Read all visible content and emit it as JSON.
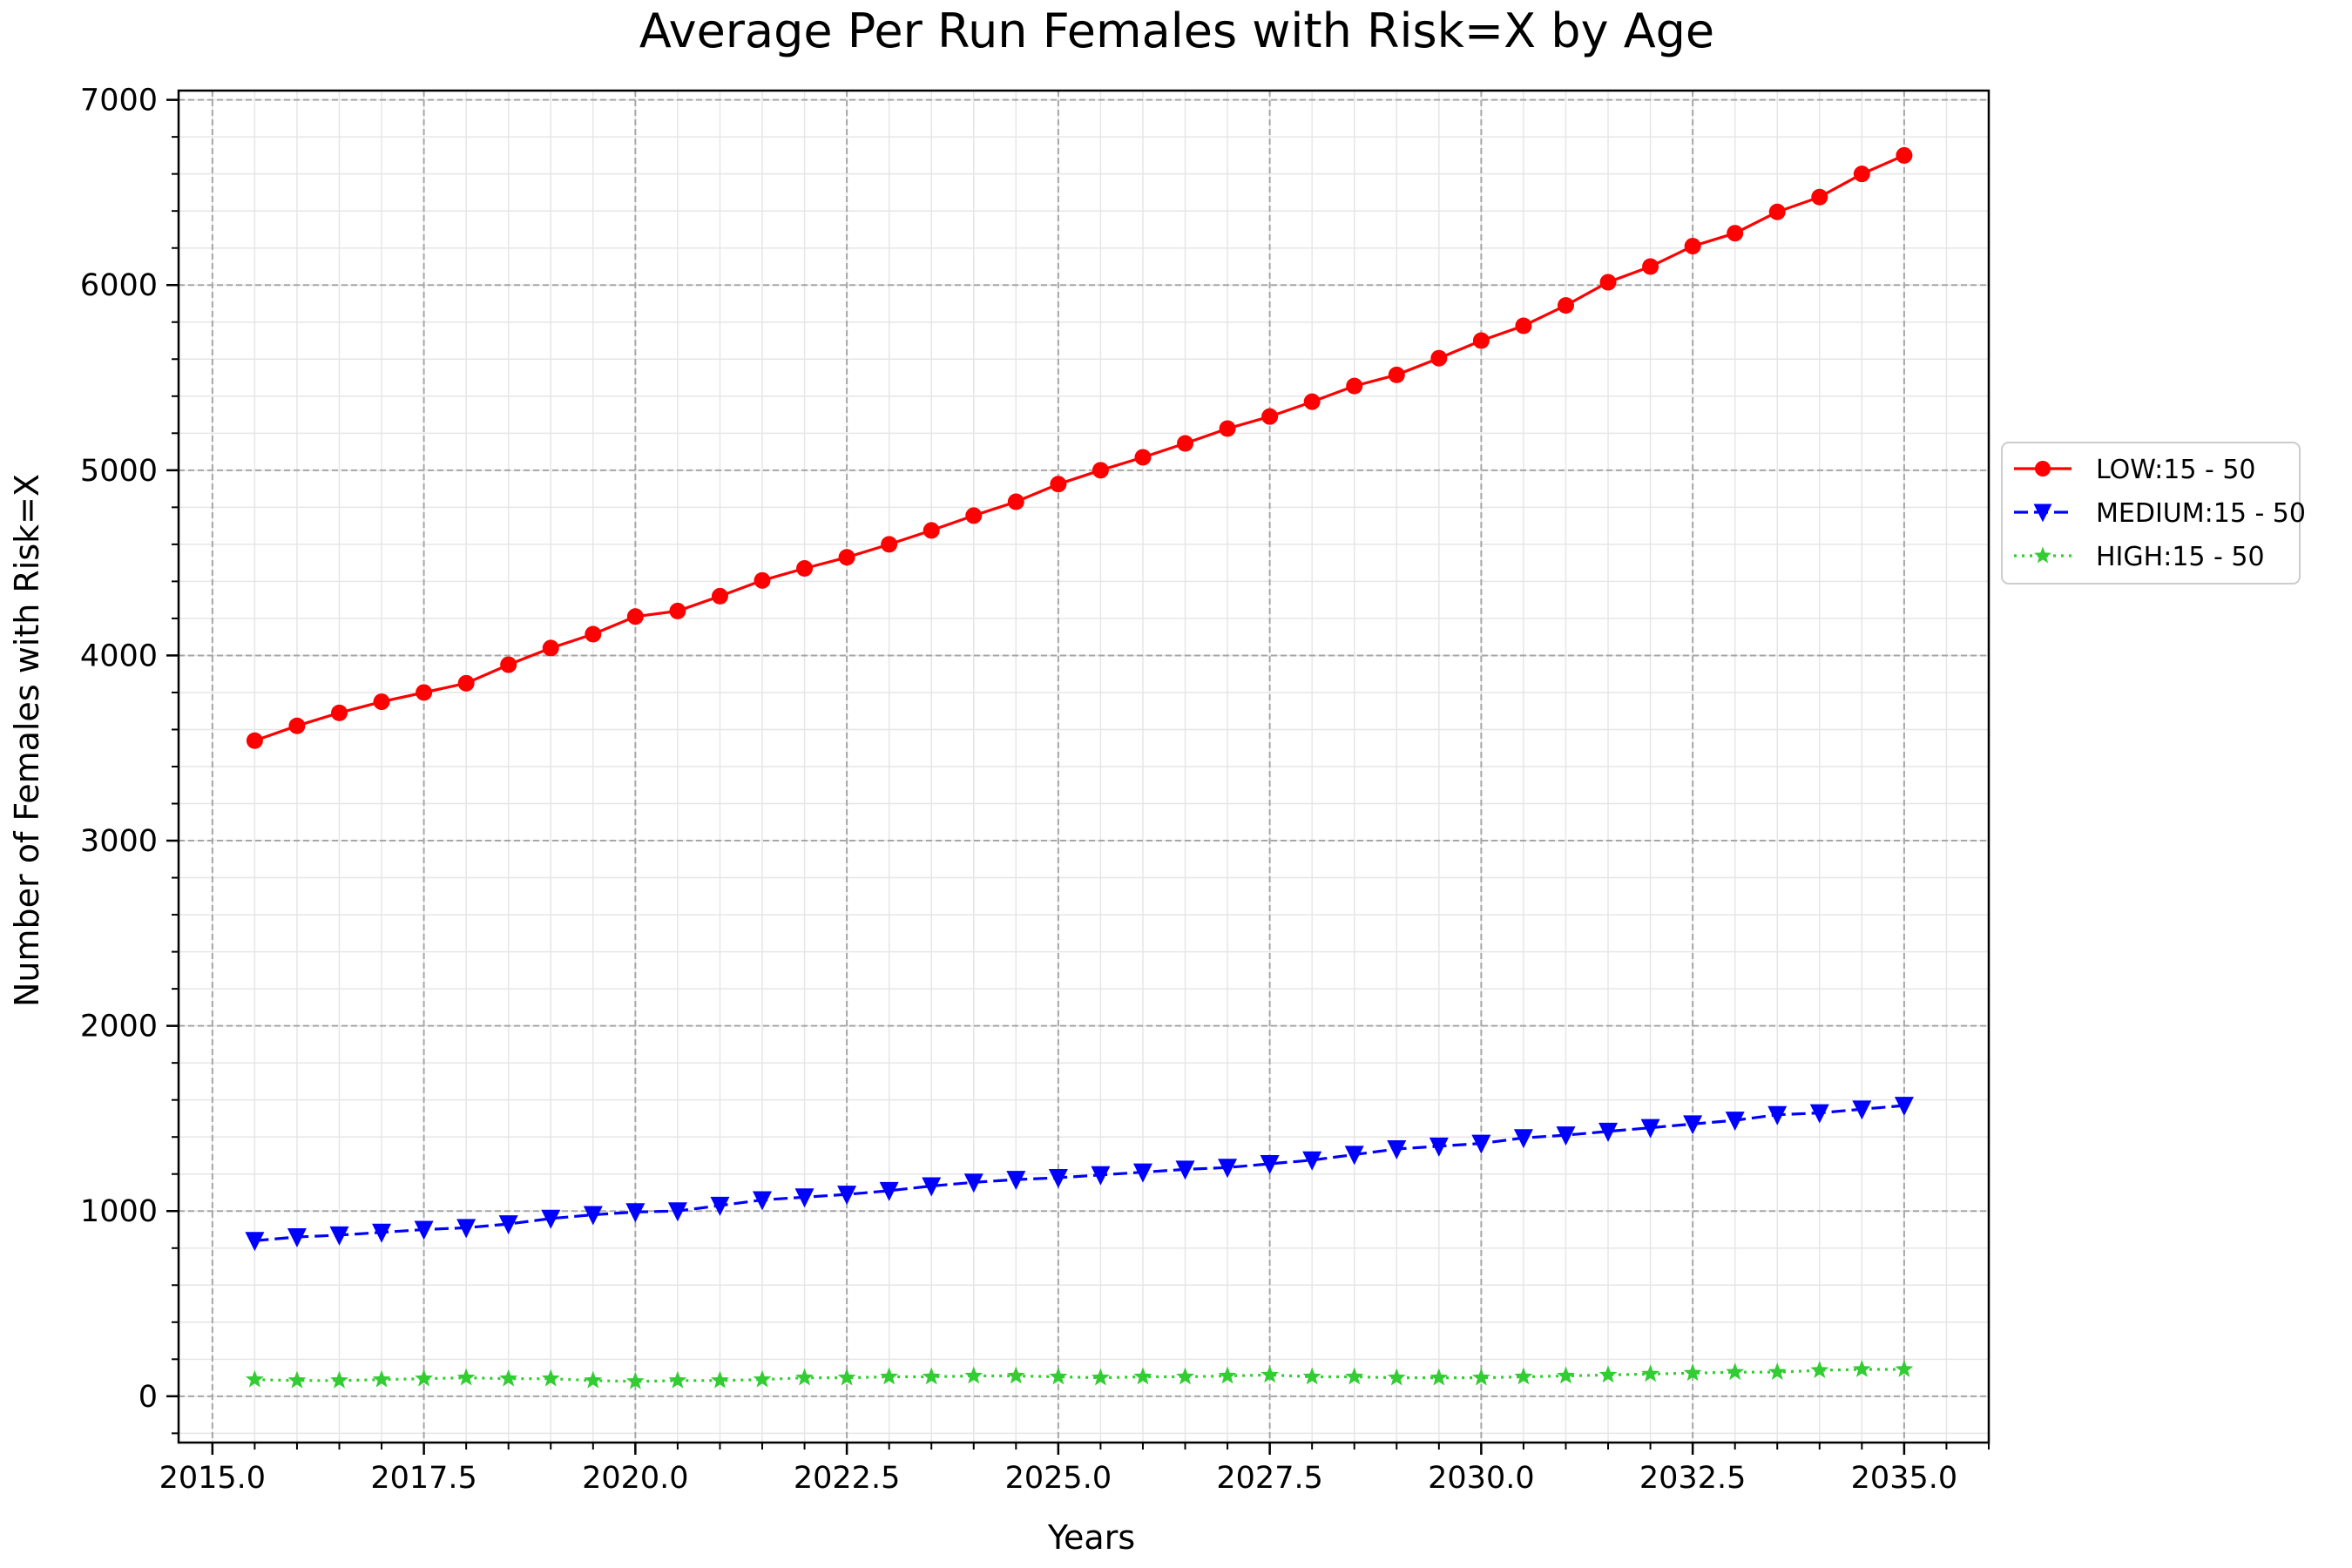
{
  "chart_data": {
    "type": "line",
    "title": "Average Per Run Females with Risk=X by Age",
    "xlabel": "Years",
    "ylabel": "Number of Females with Risk=X",
    "xlim": [
      2014.6,
      2036.0
    ],
    "ylim": [
      -250,
      7050
    ],
    "x_ticks": [
      2015.0,
      2017.5,
      2020.0,
      2022.5,
      2025.0,
      2027.5,
      2030.0,
      2032.5,
      2035.0
    ],
    "x_tick_labels": [
      "2015.0",
      "2017.5",
      "2020.0",
      "2022.5",
      "2025.0",
      "2027.5",
      "2030.0",
      "2032.5",
      "2035.0"
    ],
    "y_ticks": [
      0,
      1000,
      2000,
      3000,
      4000,
      5000,
      6000,
      7000
    ],
    "y_tick_labels": [
      "0",
      "1000",
      "2000",
      "3000",
      "4000",
      "5000",
      "6000",
      "7000"
    ],
    "grid": true,
    "minor_grid": true,
    "legend_position": "right, outside plot area",
    "x": [
      2015.5,
      2016.0,
      2016.5,
      2017.0,
      2017.5,
      2018.0,
      2018.5,
      2019.0,
      2019.5,
      2020.0,
      2020.5,
      2021.0,
      2021.5,
      2022.0,
      2022.5,
      2023.0,
      2023.5,
      2024.0,
      2024.5,
      2025.0,
      2025.5,
      2026.0,
      2026.5,
      2027.0,
      2027.5,
      2028.0,
      2028.5,
      2029.0,
      2029.5,
      2030.0,
      2030.5,
      2031.0,
      2031.5,
      2032.0,
      2032.5,
      2033.0,
      2033.5,
      2034.0,
      2034.5,
      2035.0
    ],
    "series": [
      {
        "name": "LOW:15 - 50",
        "color": "#ff0000",
        "marker": "circle",
        "line_style": "solid",
        "values": [
          3540,
          3620,
          3690,
          3750,
          3800,
          3850,
          3950,
          4040,
          4115,
          4210,
          4240,
          4320,
          4405,
          4470,
          4530,
          4600,
          4675,
          4755,
          4830,
          4925,
          5000,
          5070,
          5145,
          5225,
          5290,
          5370,
          5455,
          5515,
          5605,
          5700,
          5780,
          5890,
          6015,
          6100,
          6210,
          6280,
          6395,
          6475,
          6600,
          6700
        ]
      },
      {
        "name": "MEDIUM:15 - 50",
        "color": "#0000ff",
        "marker": "triangle-down",
        "line_style": "dashed",
        "values": [
          840,
          860,
          870,
          885,
          900,
          910,
          930,
          960,
          980,
          995,
          1000,
          1030,
          1060,
          1075,
          1090,
          1110,
          1135,
          1155,
          1170,
          1180,
          1195,
          1210,
          1225,
          1235,
          1255,
          1275,
          1305,
          1335,
          1350,
          1365,
          1395,
          1410,
          1430,
          1450,
          1470,
          1490,
          1520,
          1530,
          1550,
          1570
        ]
      },
      {
        "name": "HIGH:15 - 50",
        "color": "#32cd32",
        "marker": "star",
        "line_style": "dotted",
        "values": [
          90,
          85,
          85,
          90,
          95,
          100,
          95,
          95,
          85,
          80,
          85,
          85,
          90,
          100,
          100,
          105,
          105,
          110,
          110,
          105,
          100,
          105,
          105,
          110,
          115,
          105,
          105,
          100,
          100,
          100,
          105,
          110,
          115,
          120,
          125,
          130,
          130,
          140,
          145,
          145
        ]
      }
    ]
  }
}
